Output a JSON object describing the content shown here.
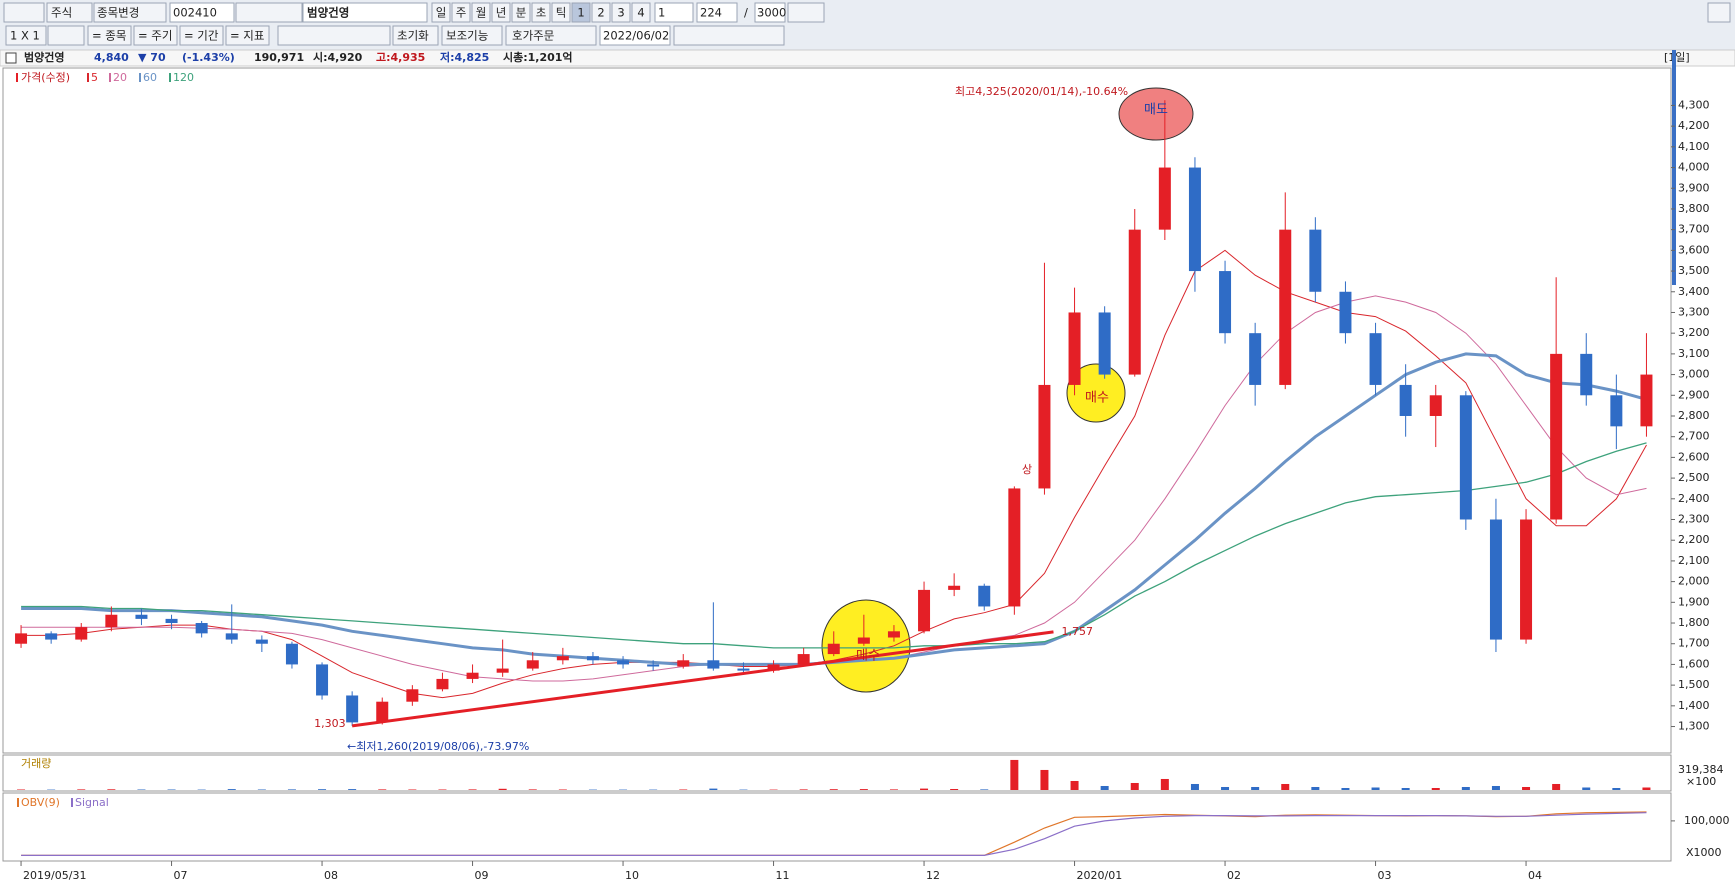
{
  "toolbar": {
    "market": "주식",
    "change": "종목변경",
    "code": "002410",
    "name": "범양건영",
    "periods": [
      "일",
      "주",
      "월",
      "년",
      "분",
      "초",
      "틱",
      "1",
      "2",
      "3",
      "4"
    ],
    "unit": "1",
    "count": "224",
    "slash": "/",
    "max": "3000",
    "layout": "1 X 1",
    "tabs": [
      "= 종목",
      "= 주기",
      "= 기간",
      "= 지표"
    ],
    "reset": "초기화",
    "aux": "보조기능",
    "order": "호가주문",
    "date": "2022/06/02"
  },
  "info_bar": {
    "name": "범양건영",
    "price": "4,840",
    "change": "▼ 70",
    "change_pct": "(-1.43%)",
    "volume": "190,971",
    "open": "시:4,920",
    "high": "고:4,935",
    "low": "저:4,825",
    "cap": "시총:1,201억",
    "period": "[1일]"
  },
  "chart_data": {
    "type": "candlestick",
    "price_label": "가격(수정)",
    "up_color": "#e41f26",
    "down_color": "#2f6cc6",
    "categories": [
      "2019/05/31",
      null,
      null,
      null,
      null,
      "07",
      null,
      null,
      null,
      null,
      "08",
      null,
      null,
      null,
      null,
      "09",
      null,
      null,
      null,
      null,
      "10",
      null,
      null,
      null,
      null,
      "11",
      null,
      null,
      null,
      null,
      "12",
      null,
      null,
      null,
      null,
      "2020/01",
      null,
      null,
      null,
      null,
      "02",
      null,
      null,
      null,
      null,
      "03",
      null,
      null,
      null,
      null,
      "04",
      null,
      null,
      null,
      null
    ],
    "open": [
      1700,
      1750,
      1720,
      1780,
      1840,
      1820,
      1800,
      1750,
      1720,
      1700,
      1600,
      1450,
      1320,
      1420,
      1480,
      1530,
      1560,
      1580,
      1620,
      1640,
      1620,
      1600,
      1590,
      1620,
      1580,
      1570,
      1600,
      1650,
      1700,
      1730,
      1760,
      1960,
      1980,
      1880,
      2450,
      2950,
      3300,
      3000,
      3700,
      4000,
      3500,
      3200,
      2950,
      3700,
      3400,
      3200,
      2950,
      2800,
      2900,
      2300,
      1720,
      2300,
      3100,
      2900,
      2750
    ],
    "high": [
      1790,
      1760,
      1800,
      1880,
      1870,
      1840,
      1810,
      1890,
      1740,
      1710,
      1610,
      1470,
      1440,
      1500,
      1560,
      1600,
      1720,
      1660,
      1680,
      1660,
      1640,
      1620,
      1650,
      1900,
      1610,
      1620,
      1680,
      1760,
      1840,
      1790,
      2000,
      2040,
      1990,
      2460,
      3540,
      3420,
      3330,
      3800,
      4325,
      4050,
      3550,
      3250,
      3880,
      3760,
      3450,
      3250,
      3050,
      2950,
      2920,
      2400,
      2350,
      3470,
      3200,
      3000,
      3200
    ],
    "low": [
      1680,
      1700,
      1710,
      1760,
      1790,
      1770,
      1730,
      1700,
      1660,
      1580,
      1430,
      1303,
      1310,
      1400,
      1470,
      1510,
      1540,
      1570,
      1600,
      1600,
      1580,
      1570,
      1580,
      1570,
      1550,
      1560,
      1590,
      1640,
      1690,
      1710,
      1750,
      1930,
      1860,
      1840,
      2420,
      2900,
      2980,
      2990,
      3650,
      3400,
      3150,
      2850,
      2930,
      3350,
      3150,
      2900,
      2700,
      2650,
      2250,
      1660,
      1700,
      2280,
      2850,
      2640,
      2700
    ],
    "close": [
      1750,
      1720,
      1780,
      1840,
      1820,
      1800,
      1750,
      1720,
      1700,
      1600,
      1450,
      1320,
      1420,
      1480,
      1530,
      1560,
      1580,
      1620,
      1640,
      1620,
      1600,
      1590,
      1620,
      1580,
      1570,
      1600,
      1650,
      1700,
      1730,
      1760,
      1960,
      1980,
      1880,
      2450,
      2950,
      3300,
      3000,
      3700,
      4000,
      3500,
      3200,
      2950,
      3700,
      3400,
      3200,
      2950,
      2800,
      2900,
      2300,
      1720,
      2300,
      3100,
      2900,
      2750,
      3000
    ],
    "series": [
      {
        "name": "5",
        "color": "#d9262c",
        "values": [
          1740,
          1740,
          1750,
          1770,
          1780,
          1790,
          1790,
          1770,
          1760,
          1720,
          1640,
          1560,
          1510,
          1460,
          1440,
          1460,
          1510,
          1550,
          1580,
          1600,
          1610,
          1610,
          1610,
          1600,
          1590,
          1590,
          1600,
          1620,
          1650,
          1690,
          1760,
          1820,
          1850,
          1890,
          2040,
          2310,
          2560,
          2800,
          3190,
          3500,
          3600,
          3480,
          3400,
          3350,
          3300,
          3280,
          3210,
          3090,
          2960,
          2680,
          2400,
          2270,
          2270,
          2400,
          2660
        ]
      },
      {
        "name": "20",
        "color": "#cf6a9c",
        "values": [
          1780,
          1780,
          1780,
          1780,
          1780,
          1780,
          1775,
          1770,
          1760,
          1750,
          1720,
          1680,
          1640,
          1600,
          1570,
          1540,
          1530,
          1520,
          1520,
          1530,
          1550,
          1570,
          1590,
          1600,
          1600,
          1600,
          1605,
          1610,
          1620,
          1630,
          1660,
          1690,
          1720,
          1740,
          1800,
          1900,
          2050,
          2200,
          2400,
          2620,
          2850,
          3050,
          3200,
          3300,
          3350,
          3380,
          3350,
          3300,
          3200,
          3050,
          2850,
          2650,
          2500,
          2420,
          2450
        ]
      },
      {
        "name": "60",
        "color": "#6a93c6",
        "values": [
          1870,
          1870,
          1870,
          1860,
          1860,
          1860,
          1850,
          1840,
          1830,
          1810,
          1790,
          1760,
          1740,
          1720,
          1700,
          1680,
          1670,
          1650,
          1640,
          1630,
          1620,
          1610,
          1600,
          1600,
          1600,
          1600,
          1600,
          1610,
          1620,
          1630,
          1650,
          1670,
          1680,
          1690,
          1700,
          1760,
          1860,
          1960,
          2080,
          2200,
          2330,
          2450,
          2580,
          2700,
          2800,
          2900,
          3000,
          3060,
          3100,
          3090,
          3000,
          2960,
          2950,
          2920,
          2880
        ]
      },
      {
        "name": "120",
        "color": "#3ea27c",
        "values": [
          1880,
          1880,
          1880,
          1870,
          1870,
          1860,
          1860,
          1850,
          1840,
          1830,
          1820,
          1810,
          1800,
          1790,
          1780,
          1770,
          1760,
          1750,
          1740,
          1730,
          1720,
          1710,
          1700,
          1700,
          1690,
          1680,
          1680,
          1680,
          1680,
          1680,
          1690,
          1690,
          1700,
          1700,
          1710,
          1760,
          1840,
          1930,
          2000,
          2080,
          2150,
          2220,
          2280,
          2330,
          2380,
          2410,
          2420,
          2430,
          2440,
          2460,
          2480,
          2520,
          2580,
          2630,
          2670
        ]
      }
    ],
    "ylim": [
      1177,
      4476
    ],
    "yticks": [
      {
        "value": 1300,
        "label": "1,300"
      },
      {
        "value": 1400,
        "label": "1,400"
      },
      {
        "value": 1500,
        "label": "1,500"
      },
      {
        "value": 1600,
        "label": "1,600"
      },
      {
        "value": 1700,
        "label": "1,700"
      },
      {
        "value": 1800,
        "label": "1,800"
      },
      {
        "value": 1900,
        "label": "1,900"
      },
      {
        "value": 2000,
        "label": "2,000"
      },
      {
        "value": 2100,
        "label": "2,100"
      },
      {
        "value": 2200,
        "label": "2,200"
      },
      {
        "value": 2300,
        "label": "2,300"
      },
      {
        "value": 2400,
        "label": "2,400"
      },
      {
        "value": 2500,
        "label": "2,500"
      },
      {
        "value": 2600,
        "label": "2,600"
      },
      {
        "value": 2700,
        "label": "2,700"
      },
      {
        "value": 2800,
        "label": "2,800"
      },
      {
        "value": 2900,
        "label": "2,900"
      },
      {
        "value": 3000,
        "label": "3,000"
      },
      {
        "value": 3100,
        "label": "3,100"
      },
      {
        "value": 3200,
        "label": "3,200"
      },
      {
        "value": 3300,
        "label": "3,300"
      },
      {
        "value": 3400,
        "label": "3,400"
      },
      {
        "value": 3500,
        "label": "3,500"
      },
      {
        "value": 3600,
        "label": "3,600"
      },
      {
        "value": 3700,
        "label": "3,700"
      },
      {
        "value": 3800,
        "label": "3,800"
      },
      {
        "value": 3900,
        "label": "3,900"
      },
      {
        "value": 4000,
        "label": "4,000"
      },
      {
        "value": 4100,
        "label": "4,100"
      },
      {
        "value": 4200,
        "label": "4,200"
      },
      {
        "value": 4300,
        "label": "4,300"
      }
    ],
    "trendline": {
      "start": {
        "value": 1303,
        "label": "1,303"
      },
      "end": {
        "value": 1757,
        "label": "1,757"
      }
    },
    "annotations": {
      "high": "최고4,325(2020/01/14),-10.64%",
      "low": "←최저1,260(2019/08/06),-73.97%",
      "sell": "매도",
      "buy": [
        "매수",
        "매수"
      ],
      "upper": "상"
    },
    "volume": {
      "label": "거래량",
      "color": "#e41f26",
      "ylim": [
        0,
        319384
      ],
      "yticks": [
        {
          "value": 319384,
          "label": "319,384"
        }
      ],
      "unit": "×100",
      "values": [
        5000,
        4000,
        6000,
        7000,
        5000,
        5000,
        4000,
        9000,
        5000,
        6000,
        8000,
        9000,
        6000,
        5000,
        5000,
        6000,
        12000,
        6000,
        5000,
        4000,
        4000,
        4000,
        5000,
        14000,
        4000,
        4000,
        6000,
        8000,
        9000,
        6000,
        14000,
        10000,
        6000,
        300000,
        200000,
        90000,
        40000,
        70000,
        110000,
        60000,
        30000,
        30000,
        60000,
        30000,
        20000,
        25000,
        20000,
        20000,
        30000,
        40000,
        30000,
        60000,
        25000,
        20000,
        25000
      ]
    },
    "obv": {
      "series": [
        {
          "name": "OBV(9)",
          "color": "#e0762a",
          "values": [
            3000,
            3000,
            3000,
            3000,
            3000,
            3000,
            3000,
            3000,
            3000,
            3000,
            3000,
            3000,
            3000,
            3000,
            3000,
            3000,
            3000,
            3000,
            3000,
            3000,
            3000,
            3000,
            3000,
            3000,
            3000,
            3000,
            3000,
            3000,
            3000,
            3000,
            3000,
            3000,
            3000,
            40000,
            80000,
            110000,
            112000,
            115000,
            118000,
            116000,
            114000,
            112000,
            116000,
            117000,
            116000,
            115000,
            114000,
            115000,
            114000,
            112000,
            113000,
            120000,
            123000,
            124000,
            125000
          ]
        },
        {
          "name": "Signal",
          "color": "#8b6fc8",
          "values": [
            3000,
            3000,
            3000,
            3000,
            3000,
            3000,
            3000,
            3000,
            3000,
            3000,
            3000,
            3000,
            3000,
            3000,
            3000,
            3000,
            3000,
            3000,
            3000,
            3000,
            3000,
            3000,
            3000,
            3000,
            3000,
            3000,
            3000,
            3000,
            3000,
            3000,
            3000,
            3000,
            3000,
            20000,
            50000,
            85000,
            100000,
            108000,
            113000,
            115000,
            115000,
            114000,
            114000,
            115000,
            115000,
            115000,
            115000,
            115000,
            114000,
            113000,
            113000,
            116000,
            119000,
            121000,
            123000
          ]
        }
      ],
      "ylim": [
        -10000,
        170000
      ],
      "yticks": [
        {
          "value": 100000,
          "label": "100,000"
        }
      ],
      "unit": "X1000"
    }
  }
}
